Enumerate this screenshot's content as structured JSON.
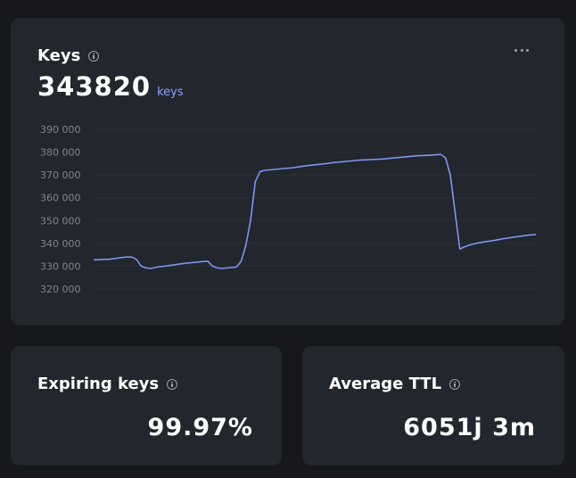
{
  "keys_card": {
    "title": "Keys",
    "value": "343820",
    "unit": "keys"
  },
  "expiring_card": {
    "title": "Expiring keys",
    "value": "99.97%"
  },
  "ttl_card": {
    "title": "Average TTL",
    "value": "6051j 3m"
  },
  "colors": {
    "background": "#16181c",
    "card": "#22262d",
    "accent": "#8ea2ff",
    "line": "#7d95f0"
  },
  "chart_data": {
    "type": "line",
    "title": "",
    "xlabel": "",
    "ylabel": "",
    "ylim": [
      315000,
      395000
    ],
    "yticks": [
      390000,
      380000,
      370000,
      360000,
      350000,
      340000,
      330000,
      320000
    ],
    "ytick_labels": [
      "390 000",
      "380 000",
      "370 000",
      "360 000",
      "350 000",
      "340 000",
      "330 000",
      "320 000"
    ],
    "grid": true,
    "series": [
      {
        "values": [
          332800,
          332800,
          333000,
          333000,
          333200,
          333500,
          333800,
          334000,
          334000,
          333000,
          330000,
          329200,
          329000,
          329400,
          329800,
          330000,
          330300,
          330600,
          330900,
          331200,
          331400,
          331600,
          331800,
          332000,
          332200,
          330000,
          329200,
          329000,
          329200,
          329400,
          329600,
          332000,
          339000,
          350000,
          367000,
          371500,
          372000,
          372200,
          372400,
          372600,
          372800,
          373000,
          373200,
          373500,
          373800,
          374100,
          374300,
          374500,
          374800,
          375000,
          375300,
          375500,
          375700,
          375900,
          376100,
          376300,
          376500,
          376600,
          376700,
          376800,
          376900,
          377000,
          377200,
          377400,
          377600,
          377800,
          378000,
          378200,
          378400,
          378500,
          378600,
          378700,
          378800,
          379000,
          377500,
          370000,
          354000,
          337500,
          338500,
          339200,
          339800,
          340200,
          340600,
          340900,
          341200,
          341600,
          342000,
          342300,
          342600,
          342900,
          343200,
          343500,
          343700,
          343820
        ]
      }
    ]
  }
}
